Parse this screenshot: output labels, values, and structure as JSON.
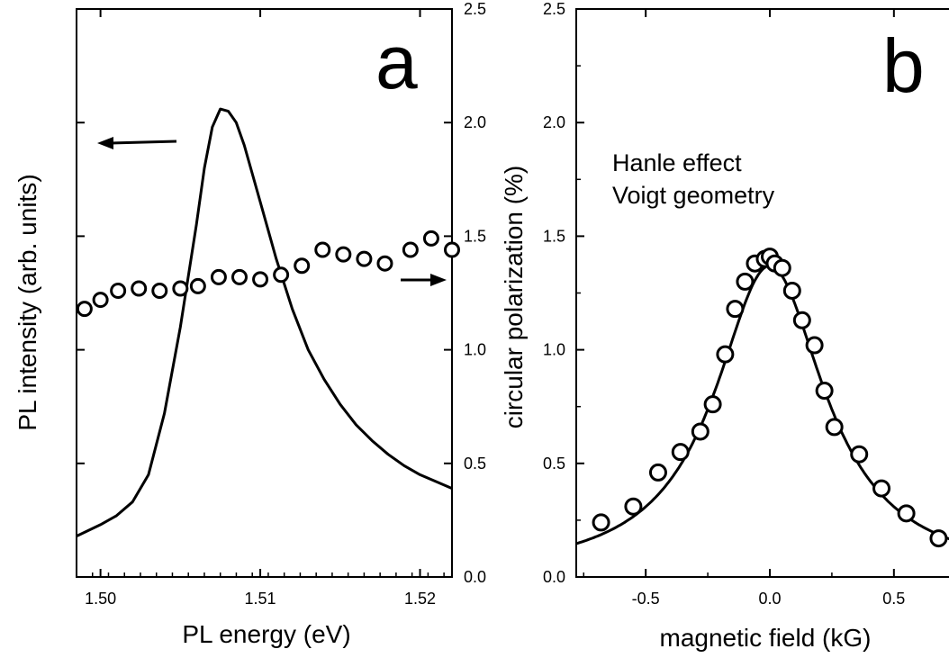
{
  "chart_data": [
    {
      "panel": "a",
      "type": "line",
      "panel_label": "a",
      "xlabel": "PL energy (eV)",
      "ylabel": "PL intensity (arb. units)",
      "ylabel_right": "circular polarization (%)",
      "xlim": [
        1.4985,
        1.522
      ],
      "x_ticks": [
        1.5,
        1.51,
        1.52
      ],
      "x_tick_labels": [
        "1.50",
        "1.51",
        "1.52"
      ],
      "ylim_right": [
        0.0,
        2.5
      ],
      "y_right_ticks": [
        0.0,
        0.5,
        1.0,
        1.5,
        2.0,
        2.5
      ],
      "y_right_tick_labels": [
        "0.0",
        "0.5",
        "1.0",
        "1.5",
        "2.0",
        "2.5"
      ],
      "grid": false,
      "series": [
        {
          "kind": "line",
          "axis": "left",
          "x": [
            1.4985,
            1.5,
            1.501,
            1.502,
            1.503,
            1.504,
            1.505,
            1.506,
            1.5065,
            1.507,
            1.5075,
            1.508,
            1.5085,
            1.509,
            1.51,
            1.511,
            1.512,
            1.513,
            1.514,
            1.515,
            1.516,
            1.517,
            1.518,
            1.519,
            1.52,
            1.521,
            1.522
          ],
          "y": [
            0.18,
            0.23,
            0.27,
            0.33,
            0.45,
            0.72,
            1.1,
            1.55,
            1.8,
            1.98,
            2.06,
            2.05,
            2.0,
            1.9,
            1.65,
            1.4,
            1.18,
            1.0,
            0.87,
            0.76,
            0.67,
            0.6,
            0.54,
            0.49,
            0.45,
            0.42,
            0.39
          ]
        },
        {
          "kind": "scatter",
          "axis": "right",
          "x": [
            1.499,
            1.5,
            1.5011,
            1.5024,
            1.5037,
            1.505,
            1.5061,
            1.5074,
            1.5087,
            1.51,
            1.5113,
            1.5126,
            1.5139,
            1.5152,
            1.5165,
            1.5178,
            1.5194,
            1.5207,
            1.522
          ],
          "y": [
            1.18,
            1.22,
            1.26,
            1.27,
            1.26,
            1.27,
            1.28,
            1.32,
            1.32,
            1.31,
            1.33,
            1.37,
            1.44,
            1.42,
            1.4,
            1.38,
            1.44,
            1.49,
            1.44
          ]
        }
      ],
      "annotations": [
        {
          "type": "arrow",
          "points_to": "left axis",
          "belongs_to": "line"
        },
        {
          "type": "arrow",
          "points_to": "right axis",
          "belongs_to": "scatter"
        }
      ]
    },
    {
      "panel": "b",
      "type": "scatter",
      "panel_label": "b",
      "xlabel": "magnetic field (kG)",
      "ylabel": "circular polarization (%)",
      "annotation_lines": [
        "Hanle effect",
        "Voigt geometry"
      ],
      "xlim": [
        -0.78,
        0.78
      ],
      "x_ticks": [
        -0.5,
        0.0,
        0.5
      ],
      "x_tick_labels": [
        "-0.5",
        "0.0",
        "0.5"
      ],
      "ylim": [
        0.0,
        2.5
      ],
      "y_ticks": [
        0.0,
        0.5,
        1.0,
        1.5,
        2.0,
        2.5
      ],
      "y_tick_labels": [
        "0.0",
        "0.5",
        "1.0",
        "1.5",
        "2.0",
        "2.5"
      ],
      "grid": false,
      "series": [
        {
          "kind": "scatter",
          "x": [
            -0.68,
            -0.55,
            -0.45,
            -0.36,
            -0.28,
            -0.23,
            -0.18,
            -0.14,
            -0.1,
            -0.06,
            -0.02,
            0.0,
            0.02,
            0.05,
            0.09,
            0.13,
            0.18,
            0.22,
            0.26,
            0.36,
            0.45,
            0.55,
            0.68
          ],
          "y": [
            0.24,
            0.31,
            0.46,
            0.55,
            0.64,
            0.76,
            0.98,
            1.18,
            1.3,
            1.38,
            1.4,
            1.41,
            1.38,
            1.36,
            1.26,
            1.13,
            1.02,
            0.82,
            0.66,
            0.54,
            0.39,
            0.28,
            0.17
          ]
        },
        {
          "kind": "fit",
          "shape": "lorentzian",
          "amplitude": 1.37,
          "center": 0.0,
          "half_width": 0.27
        }
      ]
    }
  ]
}
